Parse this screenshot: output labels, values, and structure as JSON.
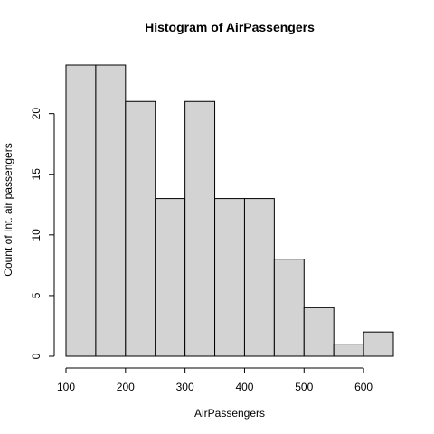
{
  "chart_data": {
    "type": "bar",
    "title": "Histogram of AirPassengers",
    "xlabel": "AirPassengers",
    "ylabel": "Count of Int. air passengers",
    "bin_edges": [
      100,
      150,
      200,
      250,
      300,
      350,
      400,
      450,
      500,
      550,
      600,
      650
    ],
    "values": [
      24,
      24,
      21,
      13,
      21,
      13,
      13,
      8,
      4,
      1,
      2
    ],
    "xlim": [
      100,
      650
    ],
    "ylim": [
      0,
      24
    ],
    "x_ticks": [
      "100",
      "200",
      "300",
      "400",
      "500",
      "600"
    ],
    "y_ticks": [
      "0",
      "5",
      "10",
      "15",
      "20"
    ],
    "bar_fill": "#d3d3d3",
    "bar_stroke": "#000000",
    "grid": false,
    "legend": "none"
  }
}
